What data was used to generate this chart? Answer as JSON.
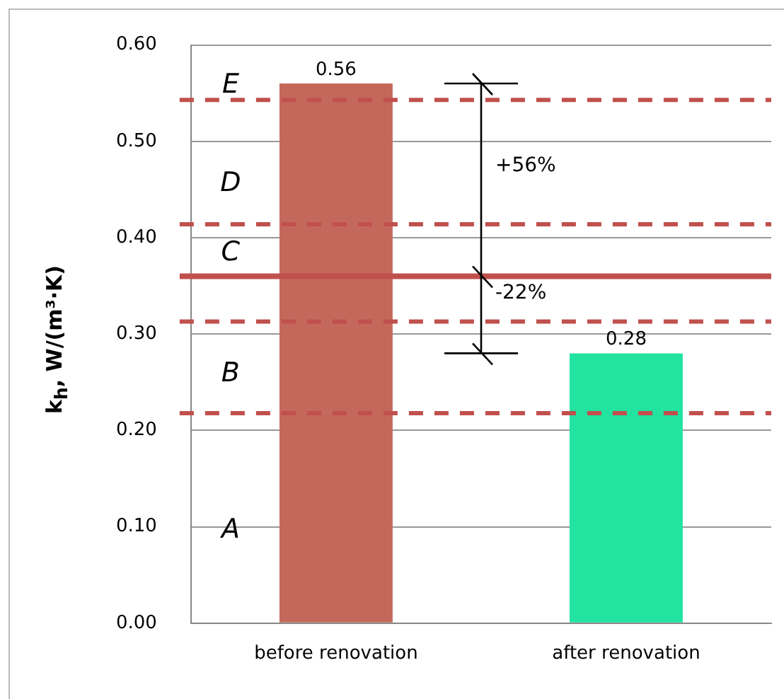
{
  "chart_data": {
    "type": "bar",
    "ylabel": "k$_{h}$, W/(m³·K)",
    "categories": [
      "before renovation",
      "after renovation"
    ],
    "values": [
      0.56,
      0.28
    ],
    "colors": [
      "#c5685c",
      "#22e3a0"
    ],
    "ylim": [
      0,
      0.6
    ],
    "yticks": [
      {
        "value": 0,
        "label": "0.00"
      },
      {
        "value": 0.1,
        "label": "0.10"
      },
      {
        "value": 0.2,
        "label": "0.20"
      },
      {
        "value": 0.3,
        "label": "0.30"
      },
      {
        "value": 0.4,
        "label": "0.40"
      },
      {
        "value": 0.5,
        "label": "0.50"
      },
      {
        "value": 0.6,
        "label": "0.60"
      }
    ],
    "grid": "y",
    "legend": false,
    "data_labels": true,
    "ref_lines": [
      {
        "axis": "y",
        "value": 0.543,
        "color": "#c0504d",
        "line_style": "dashed"
      },
      {
        "axis": "y",
        "value": 0.414,
        "color": "#c0504d",
        "line_style": "dashed"
      },
      {
        "axis": "y",
        "value": 0.36,
        "color": "#c0504d",
        "line_style": "solid"
      },
      {
        "axis": "y",
        "value": 0.313,
        "color": "#c0504d",
        "line_style": "dashed"
      },
      {
        "axis": "y",
        "value": 0.218,
        "color": "#c0504d",
        "line_style": "dashed"
      }
    ],
    "annotations": [
      "E",
      "D",
      "C",
      "B",
      "A",
      "+56%",
      "-22%"
    ]
  }
}
